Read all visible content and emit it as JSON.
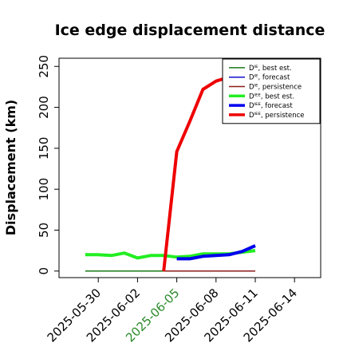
{
  "chart_data": {
    "type": "line",
    "title": "Ice edge displacement distance",
    "xlabel": "",
    "ylabel": "Displacement (km)",
    "ylim": [
      -8,
      260
    ],
    "xlim": [
      "2025-05-27",
      "2025-06-16"
    ],
    "yticks": [
      0,
      50,
      100,
      150,
      200,
      250
    ],
    "xticks": [
      {
        "date": "2025-05-30",
        "label": "2025-05-30",
        "color": "#000000"
      },
      {
        "date": "2025-06-02",
        "label": "2025-06-02",
        "color": "#000000"
      },
      {
        "date": "2025-06-05",
        "label": "2025-06-05",
        "color": "#2a8a2a"
      },
      {
        "date": "2025-06-08",
        "label": "2025-06-08",
        "color": "#000000"
      },
      {
        "date": "2025-06-11",
        "label": "2025-06-11",
        "color": "#000000"
      },
      {
        "date": "2025-06-14",
        "label": "2025-06-14",
        "color": "#000000"
      }
    ],
    "grid": false,
    "legend_position": "top-right",
    "series": [
      {
        "name": "Dᴵᴱ, best est.",
        "color": "#1a7a1a",
        "width": 1.5,
        "points": [
          [
            "2025-05-29",
            0
          ],
          [
            "2025-06-11",
            0
          ]
        ]
      },
      {
        "name": "Dᴵᴱ, forecast",
        "color": "#1010cc",
        "width": 1.5,
        "points": [
          [
            "2025-06-05",
            0
          ],
          [
            "2025-06-11",
            0
          ]
        ]
      },
      {
        "name": "Dᴵᴱ, persistence",
        "color": "#8b1a1a",
        "width": 1.5,
        "points": [
          [
            "2025-06-04",
            0
          ],
          [
            "2025-06-11",
            0
          ]
        ]
      },
      {
        "name": "Dᴵᴱᴱ, best est.",
        "color": "#22ee22",
        "width": 4,
        "points": [
          [
            "2025-05-29",
            20
          ],
          [
            "2025-05-30",
            20
          ],
          [
            "2025-05-31",
            19
          ],
          [
            "2025-06-01",
            22
          ],
          [
            "2025-06-02",
            16
          ],
          [
            "2025-06-03",
            19
          ],
          [
            "2025-06-04",
            19
          ],
          [
            "2025-06-05",
            17
          ],
          [
            "2025-06-06",
            18
          ],
          [
            "2025-06-07",
            21
          ],
          [
            "2025-06-08",
            21
          ],
          [
            "2025-06-09",
            21
          ],
          [
            "2025-06-10",
            23
          ],
          [
            "2025-06-11",
            25
          ]
        ]
      },
      {
        "name": "Dᴵᴱᴱ, forecast",
        "color": "#0000ee",
        "width": 4,
        "points": [
          [
            "2025-06-05",
            15
          ],
          [
            "2025-06-06",
            15
          ],
          [
            "2025-06-07",
            18
          ],
          [
            "2025-06-08",
            19
          ],
          [
            "2025-06-09",
            20
          ],
          [
            "2025-06-10",
            24
          ],
          [
            "2025-06-11",
            31
          ]
        ]
      },
      {
        "name": "Dᴵᴱᴱ, persistence",
        "color": "#ee0000",
        "width": 4,
        "points": [
          [
            "2025-06-04",
            0
          ],
          [
            "2025-06-05",
            146
          ],
          [
            "2025-06-06",
            183
          ],
          [
            "2025-06-07",
            222
          ],
          [
            "2025-06-08",
            232
          ],
          [
            "2025-06-09",
            237
          ],
          [
            "2025-06-10",
            240
          ],
          [
            "2025-06-11",
            243
          ]
        ]
      }
    ]
  }
}
